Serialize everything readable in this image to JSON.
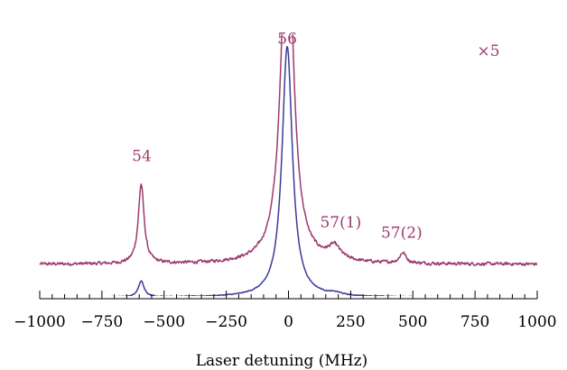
{
  "chart_data": {
    "type": "line",
    "title": "",
    "xlabel": "Laser detuning (MHz)",
    "ylabel": "",
    "xlim": [
      -1000,
      1000
    ],
    "ylim": [
      0,
      1
    ],
    "grid": false,
    "x_ticks": [
      -1000,
      -750,
      -500,
      -250,
      0,
      250,
      500,
      750,
      1000
    ],
    "x_tick_labels": [
      "−1000",
      "−750",
      "−500",
      "−250",
      "0",
      "250",
      "500",
      "750",
      "1000"
    ],
    "scale_annotation": "×5",
    "annotations": [
      {
        "text": "56",
        "x": -5,
        "y": 0.965
      },
      {
        "text": "54",
        "x": -590,
        "y": 0.52
      },
      {
        "text": "57(1)",
        "x": 210,
        "y": 0.27
      },
      {
        "text": "57(2)",
        "x": 455,
        "y": 0.23
      }
    ],
    "series": [
      {
        "color": "#9c3a6e",
        "baseline": 0.13,
        "peaks": [
          {
            "center": -592,
            "height": 0.3,
            "width": 14
          },
          {
            "center": -5,
            "height": 1.4,
            "width": 28
          },
          {
            "center": 185,
            "height": 0.05,
            "width": 30
          },
          {
            "center": 460,
            "height": 0.04,
            "width": 15
          }
        ],
        "noise": 0.009
      },
      {
        "color": "#3b3a9c",
        "baseline": 0.005,
        "peaks": [
          {
            "center": -592,
            "height": 0.06,
            "width": 14
          },
          {
            "center": -5,
            "height": 0.95,
            "width": 25
          },
          {
            "center": 190,
            "height": 0.008,
            "width": 30
          }
        ],
        "noise": 0.0025
      }
    ]
  }
}
